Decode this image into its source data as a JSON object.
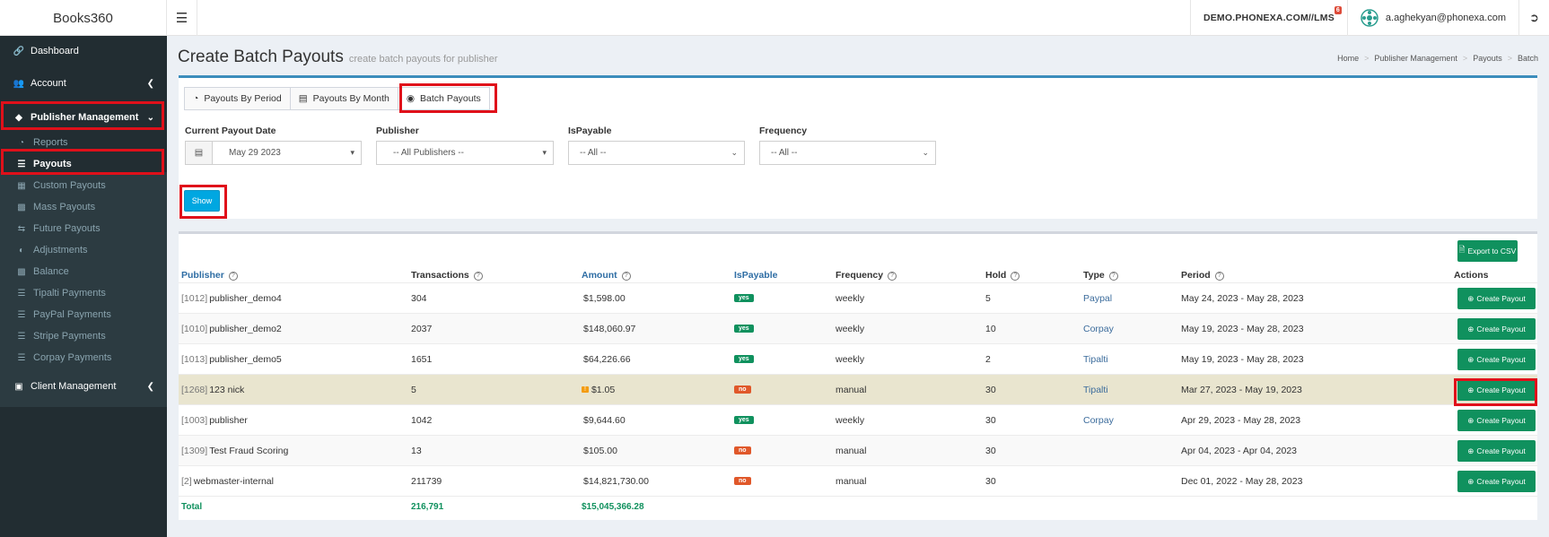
{
  "app": {
    "title": "Books360"
  },
  "topbar": {
    "menu_icon": "hamburger-icon",
    "lms_link": "DEMO.PHONEXA.COM//LMS",
    "lms_badge": "6",
    "user_email": "a.aghekyan@phonexa.com",
    "logout_icon": "sign-out-icon"
  },
  "sidebar": {
    "items": [
      {
        "label": "Dashboard",
        "icon": "link-icon"
      },
      {
        "label": "Account",
        "icon": "users-icon"
      },
      {
        "label": "Publisher Management",
        "icon": "cubes-icon"
      },
      {
        "label": "Client Management",
        "icon": "building-icon"
      }
    ],
    "sub_items": [
      {
        "label": "Reports",
        "icon": "pie-chart-icon"
      },
      {
        "label": "Payouts",
        "icon": "list-icon"
      },
      {
        "label": "Custom Payouts",
        "icon": "table-icon"
      },
      {
        "label": "Mass Payouts",
        "icon": "money-icon"
      },
      {
        "label": "Future Payouts",
        "icon": "exchange-icon"
      },
      {
        "label": "Adjustments",
        "icon": "adjust-icon"
      },
      {
        "label": "Balance",
        "icon": "money-icon"
      },
      {
        "label": "Tipalti Payments",
        "icon": "list-icon"
      },
      {
        "label": "PayPal Payments",
        "icon": "list-icon"
      },
      {
        "label": "Stripe Payments",
        "icon": "list-icon"
      },
      {
        "label": "Corpay Payments",
        "icon": "list-icon"
      }
    ]
  },
  "header": {
    "title": "Create Batch Payouts",
    "subtitle": "create batch payouts for publisher",
    "breadcrumb": [
      "Home",
      "Publisher Management",
      "Payouts",
      "Batch"
    ]
  },
  "tabs": [
    {
      "label": "Payouts By Period",
      "icon": "pie-chart-icon"
    },
    {
      "label": "Payouts By Month",
      "icon": "calendar-icon"
    },
    {
      "label": "Batch Payouts",
      "icon": "cubes-icon"
    }
  ],
  "filters": {
    "payout_date": {
      "label": "Current Payout Date",
      "value": "May 29 2023"
    },
    "publisher": {
      "label": "Publisher",
      "value": "-- All Publishers --"
    },
    "is_payable": {
      "label": "IsPayable",
      "value": "-- All --"
    },
    "frequency": {
      "label": "Frequency",
      "value": "-- All --"
    }
  },
  "show_button": "Show",
  "export_button": "Export to CSV",
  "table": {
    "headers": {
      "publisher": "Publisher",
      "transactions": "Transactions",
      "amount": "Amount",
      "is_payable": "IsPayable",
      "frequency": "Frequency",
      "hold": "Hold",
      "type": "Type",
      "period": "Period",
      "actions": "Actions"
    },
    "rows": [
      {
        "pid": "[1012]",
        "name": "publisher_demo4",
        "transactions": "304",
        "amount": "$1,598.00",
        "payable": "yes",
        "frequency": "weekly",
        "hold": "5",
        "type": "Paypal",
        "period": "May 24, 2023 - May 28, 2023",
        "action": "Create Payout"
      },
      {
        "pid": "[1010]",
        "name": "publisher_demo2",
        "transactions": "2037",
        "amount": "$148,060.97",
        "payable": "yes",
        "frequency": "weekly",
        "hold": "10",
        "type": "Corpay",
        "period": "May 19, 2023 - May 28, 2023",
        "action": "Create Payout"
      },
      {
        "pid": "[1013]",
        "name": "publisher_demo5",
        "transactions": "1651",
        "amount": "$64,226.66",
        "payable": "yes",
        "frequency": "weekly",
        "hold": "2",
        "type": "Tipalti",
        "period": "May 19, 2023 - May 28, 2023",
        "action": "Create Payout"
      },
      {
        "pid": "[1268]",
        "name": "123 nick",
        "transactions": "5",
        "amount": "$1.05",
        "amount_flag": "!",
        "payable": "no",
        "frequency": "manual",
        "hold": "30",
        "type": "Tipalti",
        "period": "Mar 27, 2023 - May 19, 2023",
        "action": "Create Payout"
      },
      {
        "pid": "[1003]",
        "name": "publisher",
        "transactions": "1042",
        "amount": "$9,644.60",
        "payable": "yes",
        "frequency": "weekly",
        "hold": "30",
        "type": "Corpay",
        "period": "Apr 29, 2023 - May 28, 2023",
        "action": "Create Payout"
      },
      {
        "pid": "[1309]",
        "name": "Test Fraud Scoring",
        "transactions": "13",
        "amount": "$105.00",
        "payable": "no",
        "frequency": "manual",
        "hold": "30",
        "type": "",
        "period": "Apr 04, 2023 - Apr 04, 2023",
        "action": "Create Payout"
      },
      {
        "pid": "[2]",
        "name": "webmaster-internal",
        "transactions": "211739",
        "amount": "$14,821,730.00",
        "payable": "no",
        "frequency": "manual",
        "hold": "30",
        "type": "",
        "period": "Dec 01, 2022 - May 28, 2023",
        "action": "Create Payout"
      }
    ],
    "total": {
      "label": "Total",
      "transactions": "216,791",
      "amount": "$15,045,366.28"
    }
  },
  "colors": {
    "accent": "#3c8dbc",
    "success": "#10915e",
    "danger": "#e0582a",
    "highlight": "#e0101a",
    "sidebar": "#222d32"
  }
}
